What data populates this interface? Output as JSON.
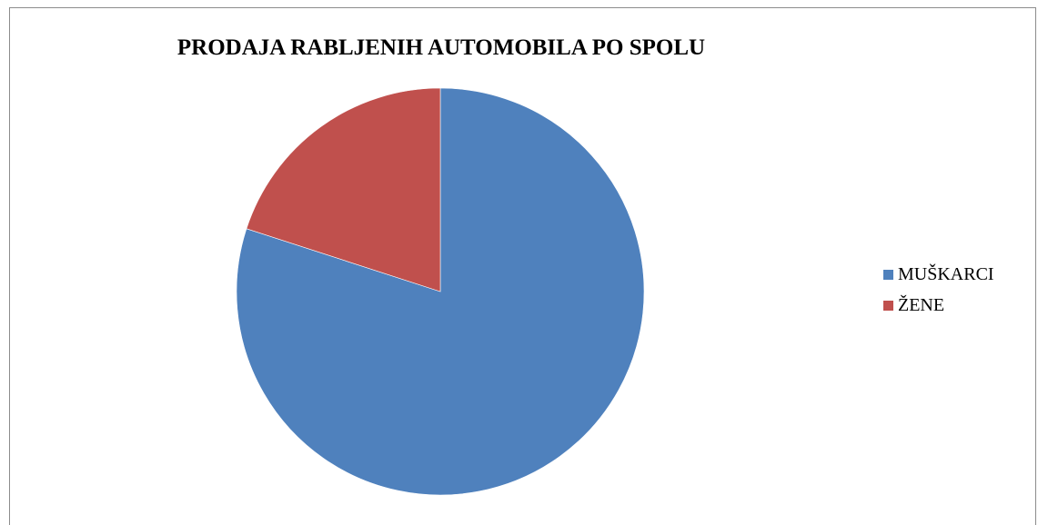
{
  "chart_data": {
    "type": "pie",
    "title": "PRODAJA RABLJENIH AUTOMOBILA PO SPOLU",
    "categories": [
      "MUŠKARCI",
      "ŽENE"
    ],
    "values": [
      80,
      20
    ],
    "colors": [
      "#4f81bd",
      "#c0504d"
    ],
    "legend_position": "right"
  }
}
